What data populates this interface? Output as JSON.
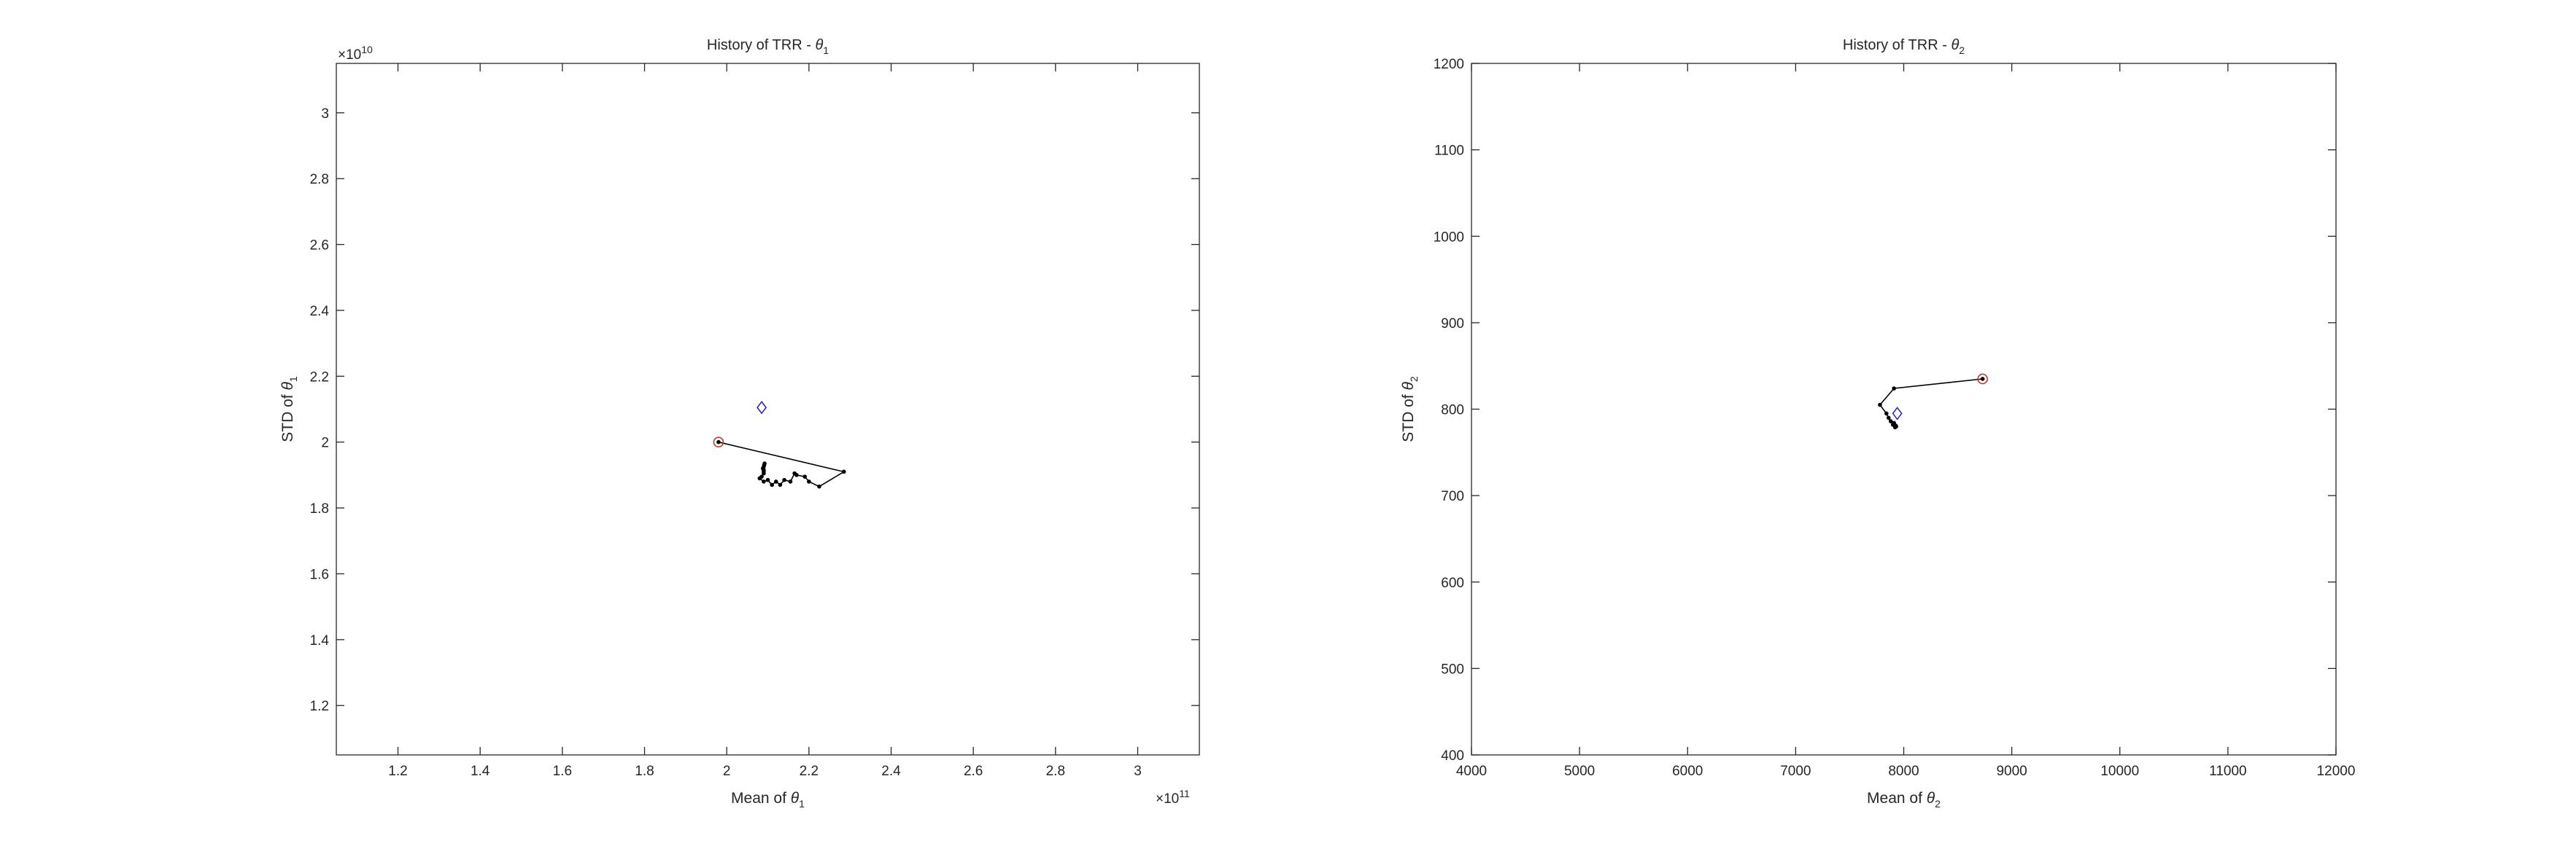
{
  "chart_data": [
    {
      "type": "line",
      "title_prefix": "History of TRR - ",
      "title_symbol": "θ",
      "title_subscript": "1",
      "xlabel_prefix": "Mean of ",
      "ylabel_prefix": "STD of ",
      "symbol": "θ",
      "subscript": "1",
      "xlim": [
        105000000000.0,
        315000000000.0
      ],
      "ylim": [
        10500000000.0,
        31500000000.0
      ],
      "xticks": [
        120000000000.0,
        140000000000.0,
        160000000000.0,
        180000000000.0,
        200000000000.0,
        220000000000.0,
        240000000000.0,
        260000000000.0,
        280000000000.0,
        300000000000.0
      ],
      "xtick_labels": [
        "1.2",
        "1.4",
        "1.6",
        "1.8",
        "2",
        "2.2",
        "2.4",
        "2.6",
        "2.8",
        "3"
      ],
      "yticks": [
        12000000000.0,
        14000000000.0,
        16000000000.0,
        18000000000.0,
        20000000000.0,
        22000000000.0,
        24000000000.0,
        26000000000.0,
        28000000000.0,
        30000000000.0
      ],
      "ytick_labels": [
        "1.2",
        "1.4",
        "1.6",
        "1.8",
        "2",
        "2.2",
        "2.4",
        "2.6",
        "2.8",
        "3"
      ],
      "x_exponent": "11",
      "y_exponent": "10",
      "exponent_base": "×10",
      "start_point": {
        "x": 198000000000.0,
        "y": 20000000000.0,
        "color": "#c0392b"
      },
      "diamond_point": {
        "x": 208500000000.0,
        "y": 21050000000.0,
        "color": "#2222cc"
      },
      "trace": {
        "x": [
          198000000000.0,
          228500000000.0,
          222500000000.0,
          220000000000.0,
          219000000000.0,
          217000000000.0,
          216500000000.0,
          215500000000.0,
          214000000000.0,
          213000000000.0,
          212000000000.0,
          211000000000.0,
          210000000000.0,
          209000000000.0,
          208000000000.0,
          208500000000.0,
          209000000000.0,
          209000000000.0,
          209000000000.0,
          208800000000.0,
          209000000000.0,
          209100000000.0,
          209200000000.0
        ],
        "y": [
          20000000000.0,
          19100000000.0,
          18650000000.0,
          18800000000.0,
          18950000000.0,
          19000000000.0,
          19050000000.0,
          18800000000.0,
          18850000000.0,
          18700000000.0,
          18800000000.0,
          18700000000.0,
          18850000000.0,
          18800000000.0,
          18900000000.0,
          18950000000.0,
          19050000000.0,
          19100000000.0,
          19150000000.0,
          19200000000.0,
          19250000000.0,
          19300000000.0,
          19350000000.0
        ],
        "color": "#000000"
      }
    },
    {
      "type": "line",
      "title_prefix": "History of TRR - ",
      "title_symbol": "θ",
      "title_subscript": "2",
      "xlabel_prefix": "Mean of ",
      "ylabel_prefix": "STD of ",
      "symbol": "θ",
      "subscript": "2",
      "xlim": [
        4000,
        12000
      ],
      "ylim": [
        400,
        1200
      ],
      "xticks": [
        4000,
        5000,
        6000,
        7000,
        8000,
        9000,
        10000,
        11000,
        12000
      ],
      "xtick_labels": [
        "4000",
        "5000",
        "6000",
        "7000",
        "8000",
        "9000",
        "10000",
        "11000",
        "12000"
      ],
      "yticks": [
        400,
        500,
        600,
        700,
        800,
        900,
        1000,
        1100,
        1200
      ],
      "ytick_labels": [
        "400",
        "500",
        "600",
        "700",
        "800",
        "900",
        "1000",
        "1100",
        "1200"
      ],
      "start_point": {
        "x": 8730,
        "y": 835,
        "color": "#c0392b"
      },
      "diamond_point": {
        "x": 7940,
        "y": 795,
        "color": "#2222cc"
      },
      "trace": {
        "x": [
          8730,
          7910,
          7780,
          7840,
          7860,
          7880,
          7900,
          7920,
          7930,
          7910,
          7925
        ],
        "y": [
          835,
          824,
          805,
          795,
          790,
          786,
          782,
          779,
          780,
          784,
          781
        ],
        "color": "#000000"
      }
    }
  ]
}
